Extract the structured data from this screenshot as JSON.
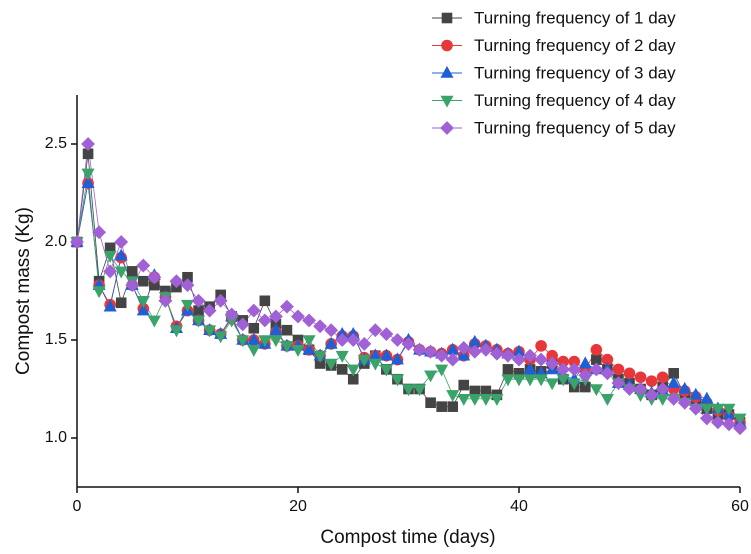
{
  "chart_data": {
    "type": "line",
    "xlabel": "Compost time (days)",
    "ylabel": "Compost mass (Kg)",
    "x": [
      0,
      1,
      2,
      3,
      4,
      5,
      6,
      7,
      8,
      9,
      10,
      11,
      12,
      13,
      14,
      15,
      16,
      17,
      18,
      19,
      20,
      21,
      22,
      23,
      24,
      25,
      26,
      27,
      28,
      29,
      30,
      31,
      32,
      33,
      34,
      35,
      36,
      37,
      38,
      39,
      40,
      41,
      42,
      43,
      44,
      45,
      46,
      47,
      48,
      49,
      50,
      51,
      52,
      53,
      54,
      55,
      56,
      57,
      58,
      59,
      60
    ],
    "xlim": [
      0,
      60
    ],
    "xticks": [
      0,
      20,
      40,
      60
    ],
    "ylim": [
      0.75,
      2.75
    ],
    "yticks": [
      {
        "value": 1.0,
        "label": "1.0"
      },
      1.5,
      {
        "value": 2.0,
        "label": "2.0"
      },
      2.5
    ],
    "series": [
      {
        "name": "Turning frequency of 1 day",
        "color": "#444444",
        "marker": "square",
        "values": [
          2.0,
          2.45,
          1.8,
          1.97,
          1.69,
          1.85,
          1.8,
          1.78,
          1.75,
          1.77,
          1.82,
          1.65,
          1.67,
          1.73,
          1.62,
          1.6,
          1.56,
          1.7,
          1.58,
          1.55,
          1.5,
          1.45,
          1.38,
          1.37,
          1.35,
          1.3,
          1.38,
          1.42,
          1.35,
          1.3,
          1.25,
          1.25,
          1.18,
          1.16,
          1.16,
          1.27,
          1.24,
          1.24,
          1.22,
          1.35,
          1.33,
          1.35,
          1.34,
          1.38,
          1.3,
          1.26,
          1.26,
          1.4,
          1.35,
          1.3,
          1.28,
          1.25,
          1.22,
          1.26,
          1.33,
          1.22,
          1.18,
          1.15,
          1.12,
          1.12,
          1.08
        ]
      },
      {
        "name": "Turning frequency of 2 day",
        "color": "#e8373a",
        "marker": "circle",
        "values": [
          2.0,
          2.3,
          1.78,
          1.68,
          1.92,
          1.78,
          1.66,
          1.82,
          1.72,
          1.57,
          1.65,
          1.6,
          1.55,
          1.53,
          1.61,
          1.5,
          1.5,
          1.48,
          1.54,
          1.47,
          1.47,
          1.45,
          1.42,
          1.48,
          1.52,
          1.52,
          1.41,
          1.42,
          1.42,
          1.4,
          1.49,
          1.45,
          1.44,
          1.43,
          1.45,
          1.42,
          1.48,
          1.47,
          1.45,
          1.43,
          1.44,
          1.4,
          1.47,
          1.42,
          1.39,
          1.39,
          1.35,
          1.45,
          1.4,
          1.35,
          1.33,
          1.31,
          1.29,
          1.31,
          1.25,
          1.24,
          1.21,
          1.18,
          1.14,
          1.11,
          1.08
        ]
      },
      {
        "name": "Turning frequency of 3 day",
        "color": "#1f5fd6",
        "marker": "triangle",
        "values": [
          2.0,
          2.3,
          1.78,
          1.67,
          1.93,
          1.78,
          1.65,
          1.83,
          1.72,
          1.56,
          1.65,
          1.6,
          1.55,
          1.53,
          1.62,
          1.5,
          1.5,
          1.48,
          1.55,
          1.47,
          1.47,
          1.45,
          1.42,
          1.48,
          1.53,
          1.53,
          1.4,
          1.42,
          1.42,
          1.4,
          1.5,
          1.45,
          1.44,
          1.43,
          1.45,
          1.42,
          1.49,
          1.47,
          1.45,
          1.43,
          1.44,
          1.35,
          1.33,
          1.35,
          1.32,
          1.3,
          1.38,
          1.35,
          1.35,
          1.28,
          1.27,
          1.25,
          1.23,
          1.24,
          1.28,
          1.25,
          1.22,
          1.2,
          1.15,
          1.12,
          1.08
        ]
      },
      {
        "name": "Turning frequency of 4 day",
        "color": "#3aa36a",
        "marker": "triangle-down",
        "values": [
          2.0,
          2.35,
          1.75,
          1.93,
          1.85,
          1.8,
          1.7,
          1.6,
          1.72,
          1.55,
          1.68,
          1.6,
          1.55,
          1.52,
          1.6,
          1.5,
          1.45,
          1.5,
          1.5,
          1.47,
          1.45,
          1.5,
          1.42,
          1.38,
          1.42,
          1.35,
          1.4,
          1.38,
          1.35,
          1.3,
          1.25,
          1.25,
          1.32,
          1.35,
          1.22,
          1.2,
          1.2,
          1.2,
          1.2,
          1.3,
          1.3,
          1.3,
          1.3,
          1.28,
          1.3,
          1.28,
          1.3,
          1.25,
          1.2,
          1.28,
          1.25,
          1.22,
          1.2,
          1.2,
          1.2,
          1.18,
          1.15,
          1.15,
          1.15,
          1.15,
          1.1
        ]
      },
      {
        "name": "Turning frequency of 5 day",
        "color": "#a061d6",
        "marker": "diamond",
        "values": [
          2.0,
          2.5,
          2.05,
          1.85,
          2.0,
          1.78,
          1.88,
          1.82,
          1.7,
          1.8,
          1.78,
          1.7,
          1.65,
          1.7,
          1.63,
          1.58,
          1.65,
          1.6,
          1.62,
          1.67,
          1.62,
          1.6,
          1.57,
          1.55,
          1.5,
          1.5,
          1.48,
          1.55,
          1.53,
          1.5,
          1.48,
          1.45,
          1.44,
          1.42,
          1.4,
          1.46,
          1.44,
          1.45,
          1.43,
          1.42,
          1.4,
          1.42,
          1.4,
          1.38,
          1.35,
          1.35,
          1.32,
          1.35,
          1.33,
          1.28,
          1.25,
          1.25,
          1.22,
          1.25,
          1.2,
          1.18,
          1.15,
          1.1,
          1.08,
          1.07,
          1.05
        ]
      }
    ]
  }
}
